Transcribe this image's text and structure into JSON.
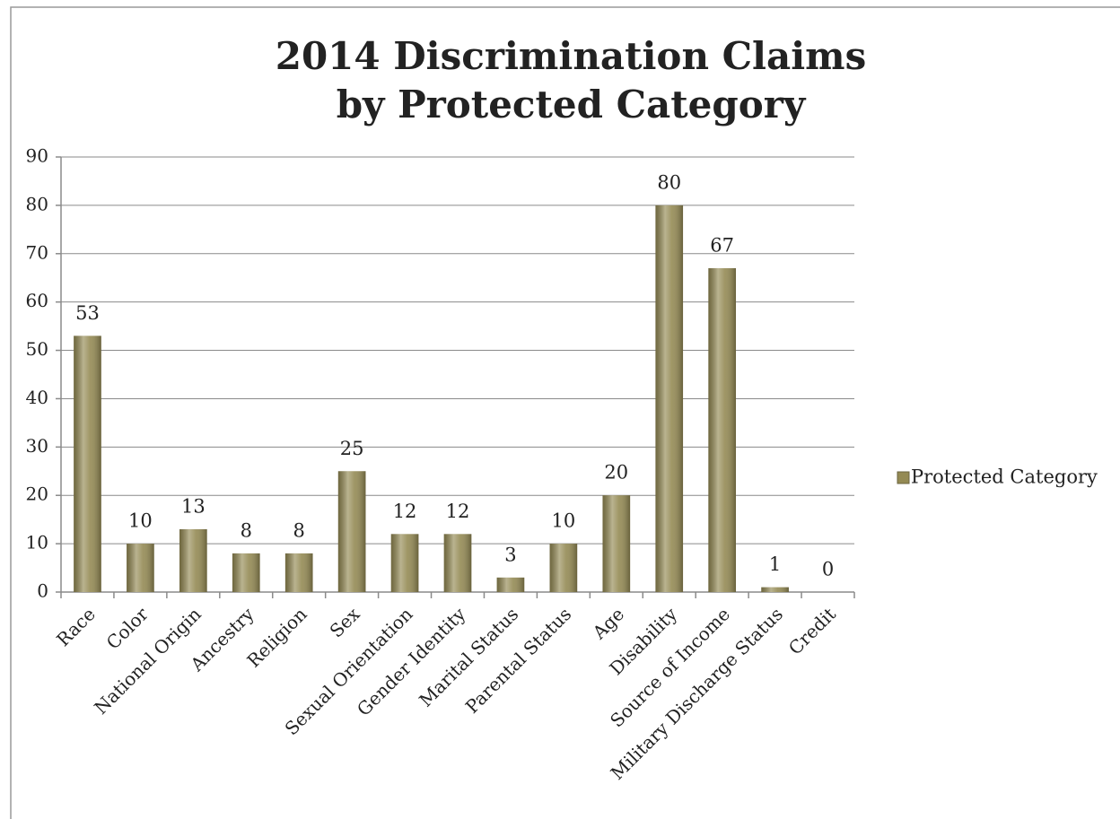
{
  "chart_data": {
    "type": "bar",
    "title": "2014 Discrimination Claims by Protected Category",
    "categories": [
      "Race",
      "Color",
      "National Origin",
      "Ancestry",
      "Religion",
      "Sex",
      "Sexual Orientation",
      "Gender Identity",
      "Marital Status",
      "Parental Status",
      "Age",
      "Disability",
      "Source of Income",
      "Military Discharge Status",
      "Credit"
    ],
    "series": [
      {
        "name": "Protected Category",
        "color": "#948a54",
        "values": [
          53,
          10,
          13,
          8,
          8,
          25,
          12,
          12,
          3,
          10,
          20,
          80,
          67,
          1,
          0
        ]
      }
    ],
    "ylim": [
      0,
      90
    ],
    "yticks": [
      0,
      10,
      20,
      30,
      40,
      50,
      60,
      70,
      80,
      90
    ],
    "grid": true,
    "legend": "right",
    "data_labels": true
  }
}
